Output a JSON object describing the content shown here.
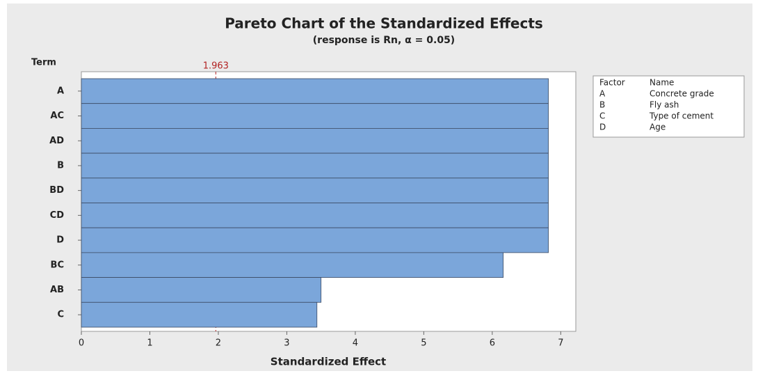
{
  "chart_data": {
    "type": "bar",
    "orientation": "horizontal",
    "title": "Pareto Chart of the Standardized Effects",
    "subtitle": "(response is Rn, α = 0.05)",
    "x_label": "Standardized Effect",
    "y_label": "Term",
    "categories": [
      "A",
      "AC",
      "AD",
      "B",
      "BD",
      "CD",
      "D",
      "BC",
      "AB",
      "C"
    ],
    "values": [
      6.82,
      6.82,
      6.82,
      6.82,
      6.82,
      6.82,
      6.82,
      6.16,
      3.5,
      3.44
    ],
    "color": "#7ba6da",
    "xlim": [
      0,
      7.22
    ],
    "xticks": [
      0,
      1,
      2,
      3,
      4,
      5,
      6,
      7
    ],
    "reference_line": {
      "value": 1.963,
      "color": "#b22222"
    },
    "legend_table": {
      "header": [
        "Factor",
        "Name"
      ],
      "rows": [
        [
          "A",
          "Concrete grade"
        ],
        [
          "B",
          "Fly ash"
        ],
        [
          "C",
          "Type of cement"
        ],
        [
          "D",
          "Age"
        ]
      ]
    }
  }
}
